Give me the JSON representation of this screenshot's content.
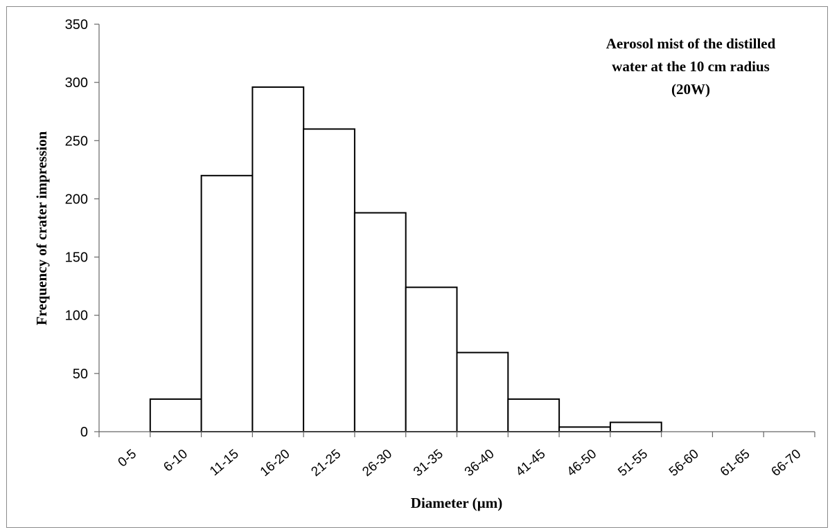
{
  "chart_data": {
    "type": "bar",
    "title_lines": [
      "Aerosol mist of the distilled",
      "water at the 10 cm radius",
      "(20W)"
    ],
    "xlabel": "Diameter (µm)",
    "ylabel": "Frequency of crater impression",
    "categories": [
      "0-5",
      "6-10",
      "11-15",
      "16-20",
      "21-25",
      "26-30",
      "31-35",
      "36-40",
      "41-45",
      "46-50",
      "51-55",
      "56-60",
      "61-65",
      "66-70"
    ],
    "values": [
      0,
      28,
      220,
      296,
      260,
      188,
      124,
      68,
      28,
      4,
      8,
      0,
      0,
      0
    ],
    "ylim": [
      0,
      350
    ],
    "yticks": [
      "0",
      "50",
      "100",
      "150",
      "200",
      "250",
      "300",
      "350"
    ],
    "grid": false,
    "bar_fill": "#ffffff",
    "bar_stroke": "#000000"
  }
}
